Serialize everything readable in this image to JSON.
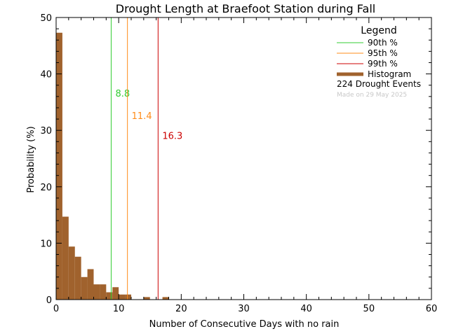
{
  "chart_data": {
    "type": "bar",
    "title": "Drought Length at Braefoot Station during Fall",
    "xlabel": "Number of Consecutive Days with no rain",
    "ylabel": "Probability (%)",
    "xlim": [
      0,
      60
    ],
    "ylim": [
      0,
      50
    ],
    "x_ticks": [
      0,
      10,
      20,
      30,
      40,
      50,
      60
    ],
    "y_ticks": [
      0,
      10,
      20,
      30,
      40,
      50
    ],
    "grid": false,
    "legend_position": "top-right",
    "bin_width": 1,
    "histogram": {
      "name": "Histogram",
      "color": "#a0622d",
      "bins": [
        {
          "x": 0,
          "value": 47.3
        },
        {
          "x": 1,
          "value": 14.7
        },
        {
          "x": 2,
          "value": 9.4
        },
        {
          "x": 3,
          "value": 7.6
        },
        {
          "x": 4,
          "value": 4.0
        },
        {
          "x": 5,
          "value": 5.4
        },
        {
          "x": 6,
          "value": 2.7
        },
        {
          "x": 7,
          "value": 2.7
        },
        {
          "x": 8,
          "value": 1.3
        },
        {
          "x": 9,
          "value": 2.2
        },
        {
          "x": 10,
          "value": 0.9
        },
        {
          "x": 11,
          "value": 0.9
        },
        {
          "x": 12,
          "value": 0.0
        },
        {
          "x": 13,
          "value": 0.0
        },
        {
          "x": 14,
          "value": 0.45
        },
        {
          "x": 15,
          "value": 0.0
        },
        {
          "x": 16,
          "value": 0.0
        },
        {
          "x": 17,
          "value": 0.45
        }
      ]
    },
    "percentile_lines": [
      {
        "name": "90th %",
        "value": 8.8,
        "label": "8.8",
        "color": "#33cc33",
        "label_y": 36
      },
      {
        "name": "95th %",
        "value": 11.4,
        "label": "11.4",
        "color": "#ff8c1a",
        "label_y": 32
      },
      {
        "name": "99th %",
        "value": 16.3,
        "label": "16.3",
        "color": "#cc0000",
        "label_y": 28.5
      }
    ],
    "legend": {
      "title": "Legend",
      "events_text": "224 Drought Events",
      "made_on": "Made on 29 May 2025"
    }
  }
}
